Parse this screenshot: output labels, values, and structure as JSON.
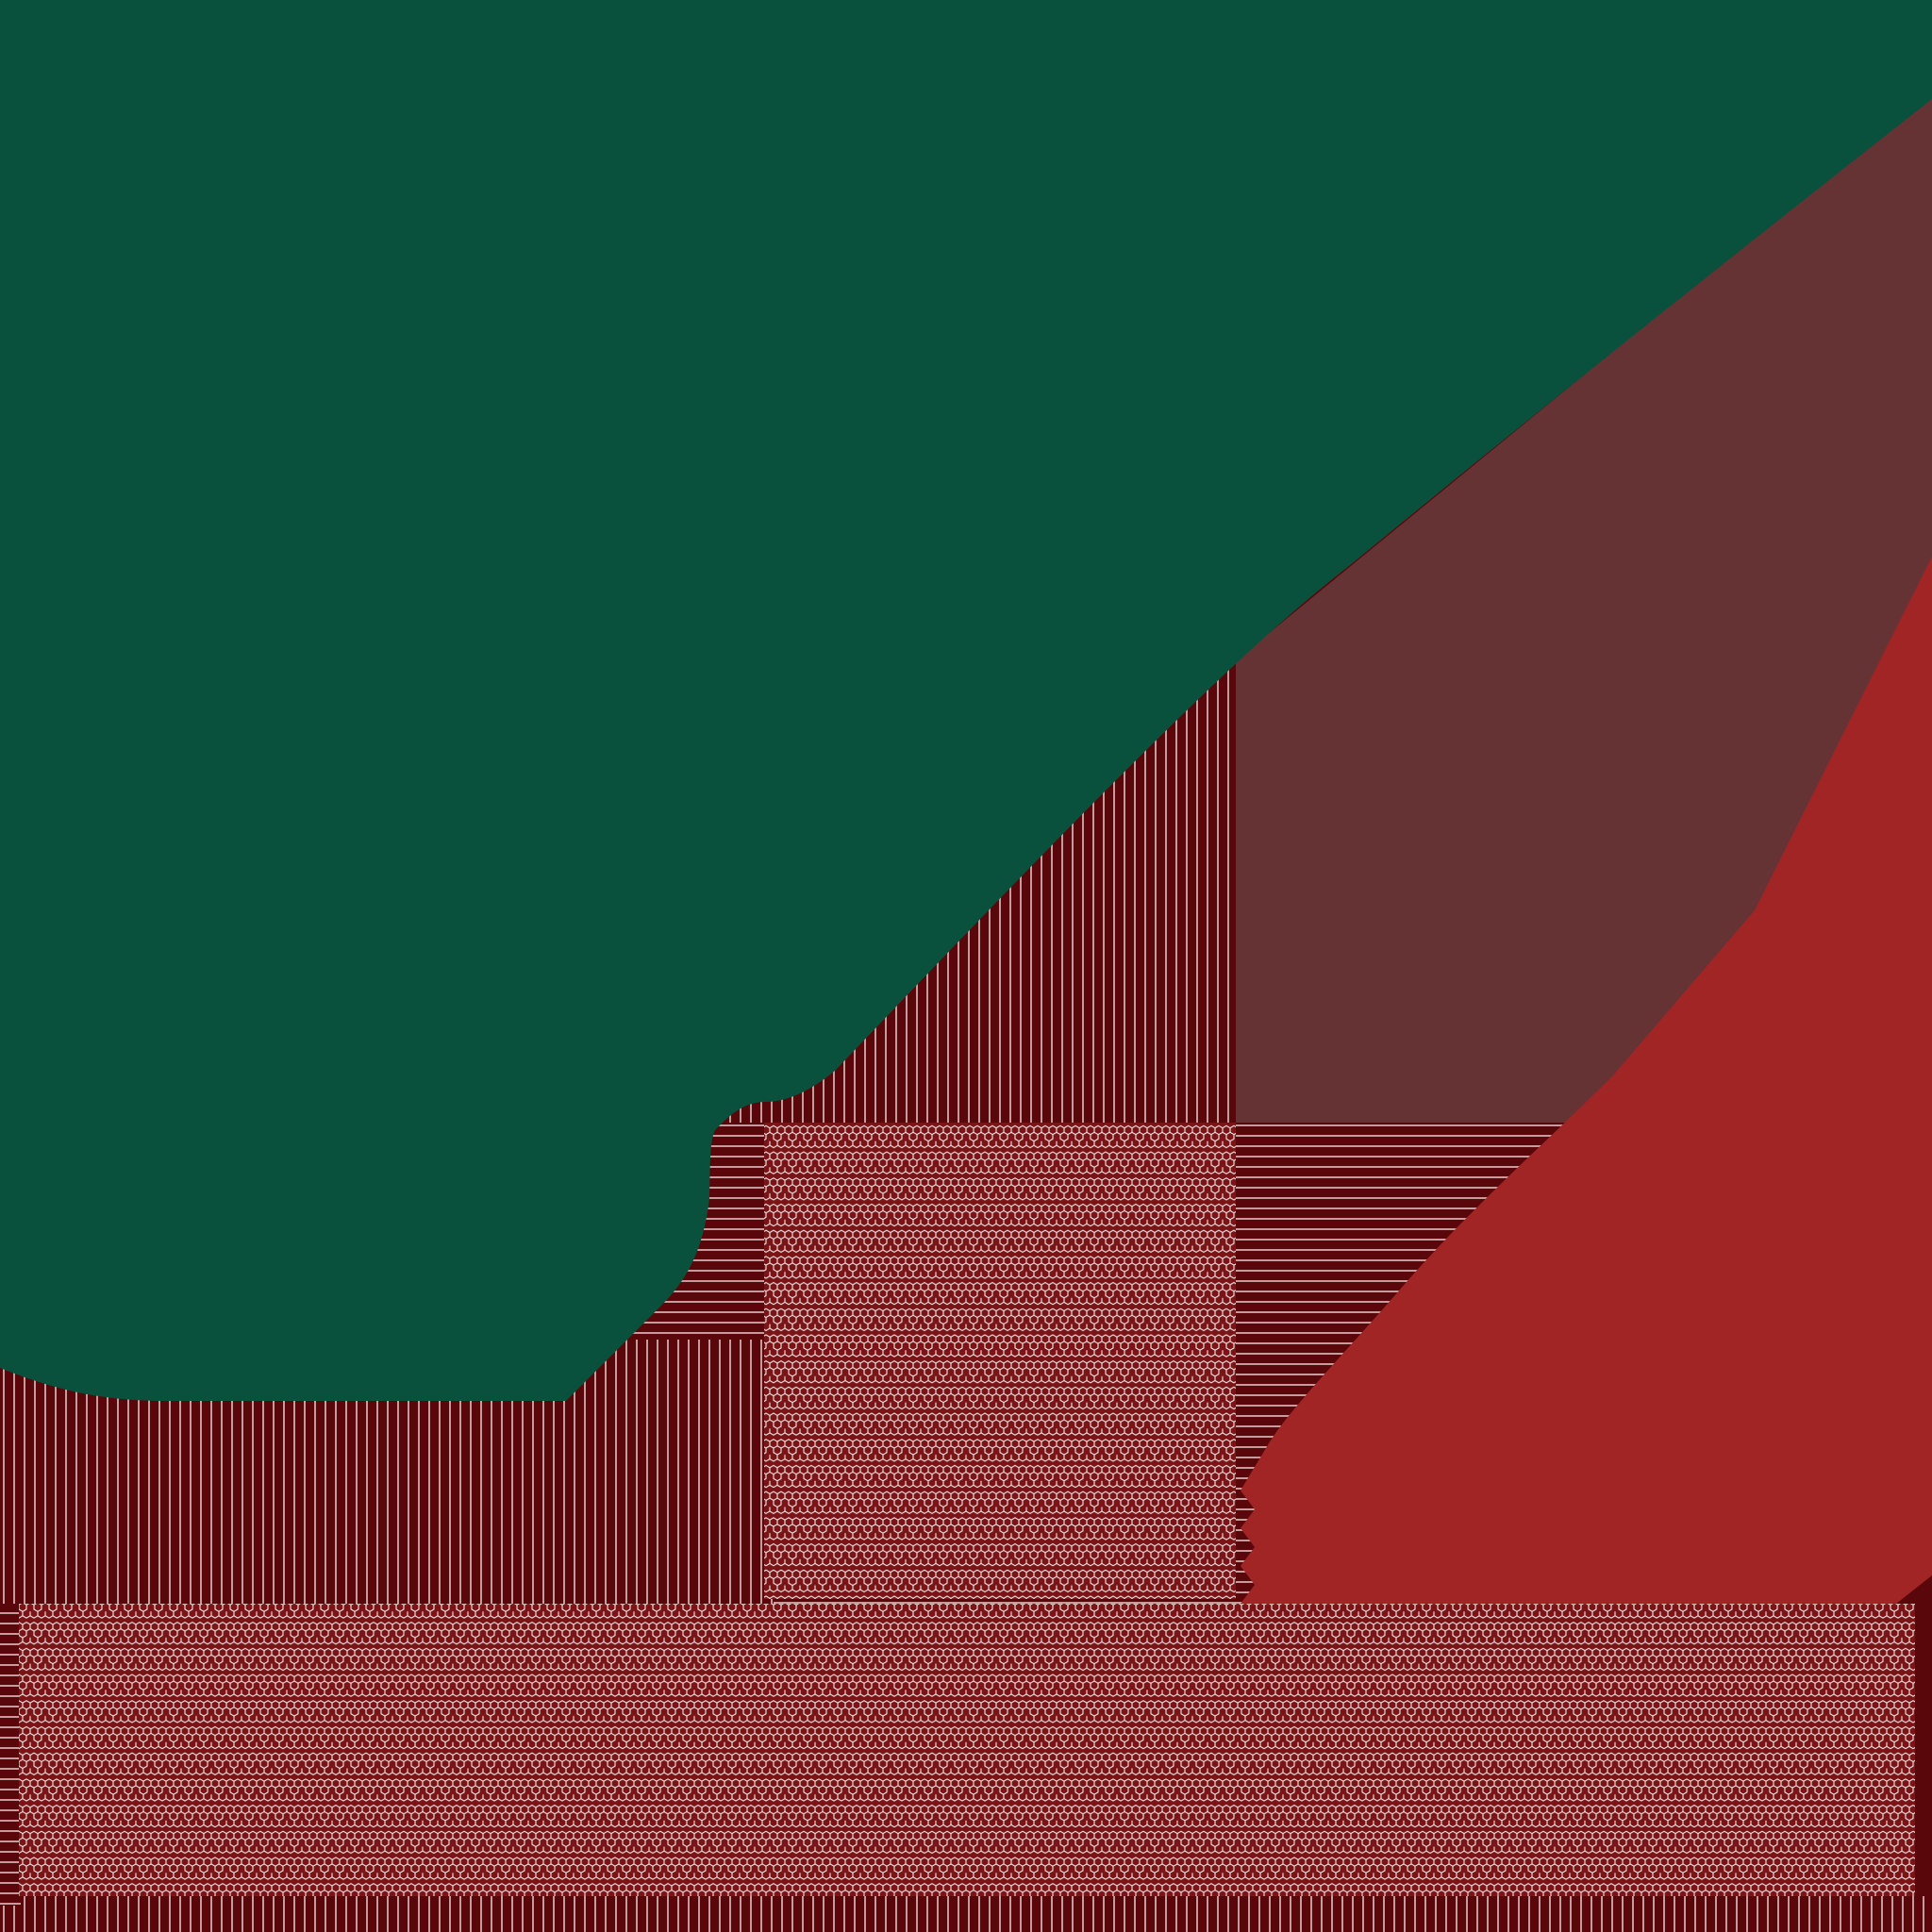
{
  "colors": {
    "background": "#5a070b",
    "green_region": "#09513c",
    "mauve_region": "#663334",
    "red_region": "#a22526",
    "pattern_line": "#d8b8b8",
    "hex_line": "#ffffff"
  },
  "regions": [
    {
      "id": "green-region",
      "fill_key": "green_region"
    },
    {
      "id": "mauve-region",
      "fill_key": "mauve_region"
    },
    {
      "id": "red-region",
      "fill_key": "red_region"
    },
    {
      "id": "hex-pattern-region",
      "fill_key": "background"
    },
    {
      "id": "vertical-stripe-region",
      "fill_key": "background"
    },
    {
      "id": "horizontal-stripe-region",
      "fill_key": "background"
    }
  ]
}
